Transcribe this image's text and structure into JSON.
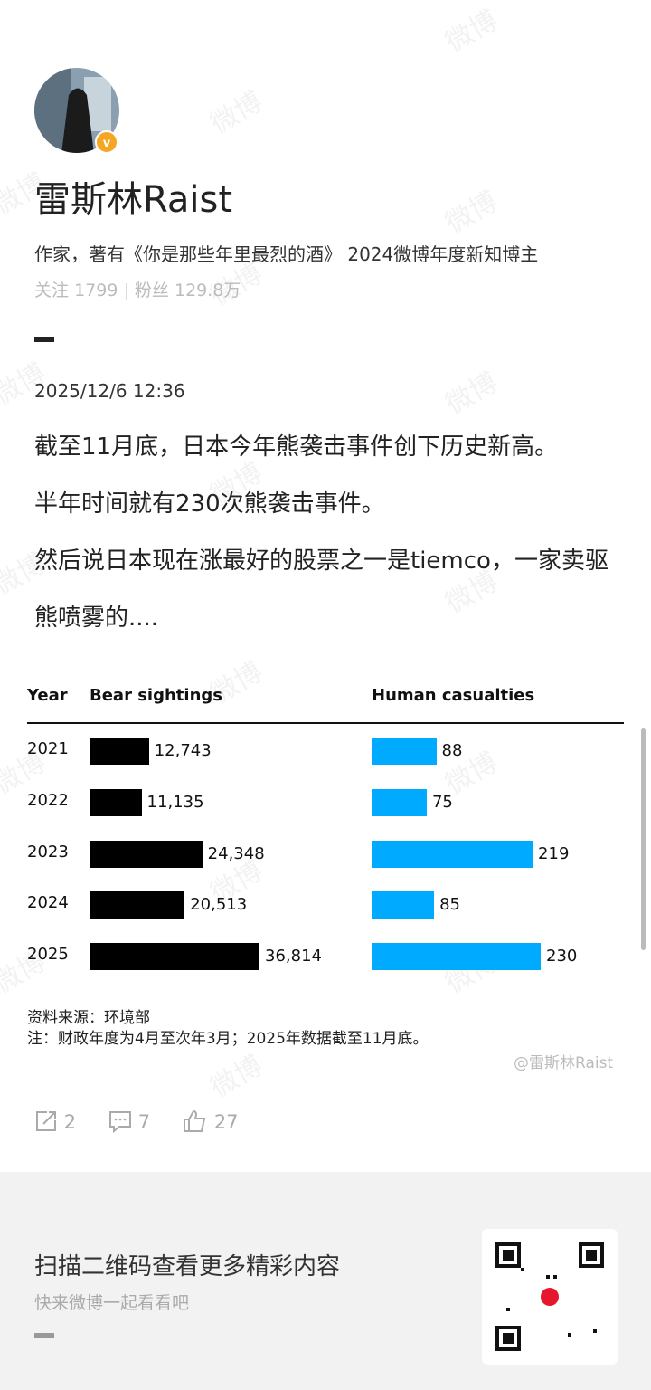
{
  "profile": {
    "name": "雷斯林Raist",
    "bio": "作家，著有《你是那些年里最烈的酒》 2024微博年度新知博主",
    "following_label": "关注",
    "following": 1799,
    "followers_label": "粉丝",
    "followers": "129.8万"
  },
  "post": {
    "time": "2025/12/6 12:36",
    "paragraphs": [
      "截至11月底，日本今年熊袭击事件创下历史新高。",
      "半年时间就有230次熊袭击事件。",
      "然后说日本现在涨最好的股票之一是tiemco，一家卖驱熊喷雾的...."
    ]
  },
  "chart": {
    "headers": [
      "Year",
      "Bear sightings",
      "Human casualties"
    ],
    "years": [
      "2021",
      "2022",
      "2023",
      "2024",
      "2025"
    ],
    "sightings": [
      12743,
      11135,
      24348,
      20513,
      36814
    ],
    "sightings_labels": [
      "12,743",
      "11,135",
      "24,348",
      "20,513",
      "36,814"
    ],
    "sightings_color": "#000000",
    "casualties": [
      88,
      75,
      219,
      85,
      230
    ],
    "casualties_color": "#00aaff",
    "source": "资料来源：环境部",
    "note": "注：财政年度为4月至次年3月；2025年数据截至11月底。",
    "credit": "@雷斯林Raist"
  },
  "actions": {
    "reposts": 2,
    "comments": 7,
    "likes": 27
  },
  "footer": {
    "title": "扫描二维码查看更多精彩内容",
    "subtitle": "快来微博一起看看吧"
  },
  "watermark": "微博"
}
